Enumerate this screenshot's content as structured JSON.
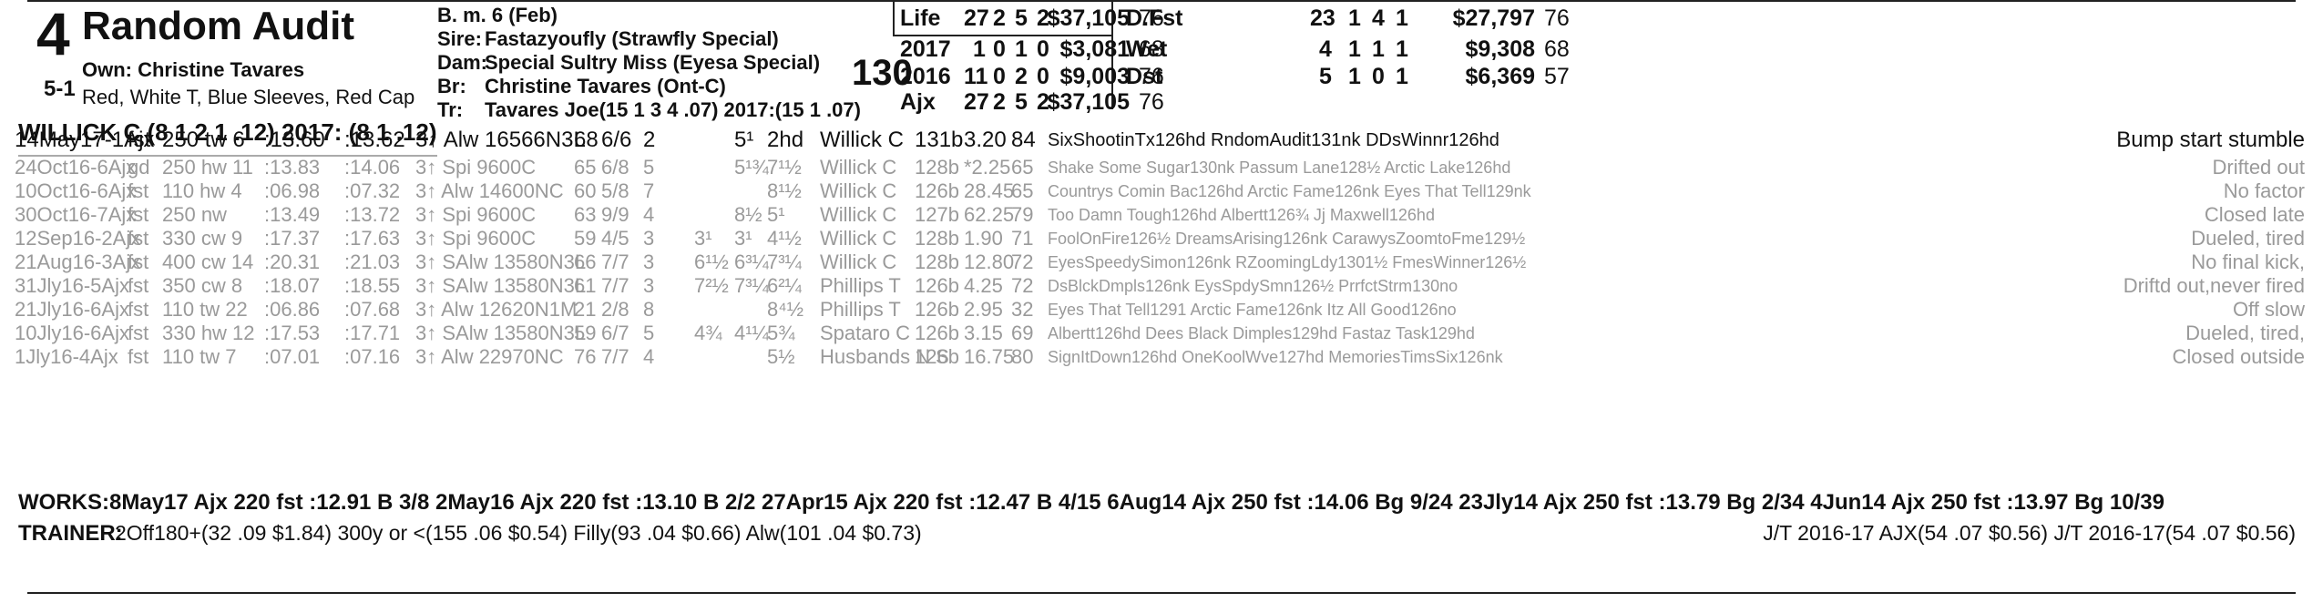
{
  "header": {
    "program_number": "4",
    "morning_line": "5-1",
    "horse_name": "Random Audit",
    "owner": "Own: Christine Tavares",
    "silks": "Red, White T, Blue Sleeves, Red Cap",
    "jockey_line": "WILLICK C (8 1 2 1 .12) 2017: (8 1 .12)",
    "breeding": {
      "sex_age": "B. m. 6 (Feb)",
      "sire_label": "Sire:",
      "sire": "Fastazyoufly (Strawfly Special)",
      "dam_label": "Dam:",
      "dam": "Special Sultry Miss (Eyesa Special)",
      "breeder_label": "Br:",
      "breeder": "Christine Tavares (Ont-C)",
      "trainer_label": "Tr:",
      "trainer": "Tavares Joe(15 1 3 4 .07)  2017:(15 1 .07)"
    },
    "weight": "130"
  },
  "stats_left": [
    {
      "label": "Life",
      "starts": "27",
      "w": "2",
      "p": "5",
      "s": "2",
      "earn": "$37,105",
      "spd": "76"
    },
    {
      "label": "2017",
      "starts": "1",
      "w": "0",
      "p": "1",
      "s": "0",
      "earn": "$3,081",
      "spd": "68"
    },
    {
      "label": "2016",
      "starts": "11",
      "w": "0",
      "p": "2",
      "s": "0",
      "earn": "$9,003",
      "spd": "76"
    },
    {
      "label": "Ajx",
      "starts": "27",
      "w": "2",
      "p": "5",
      "s": "2",
      "earn": "$37,105",
      "spd": "76"
    }
  ],
  "stats_right": [
    {
      "label": "D.Fst",
      "starts": "23",
      "w": "1",
      "p": "4",
      "s": "1",
      "earn": "$27,797",
      "spd": "76"
    },
    {
      "label": "Wet",
      "starts": "4",
      "w": "1",
      "p": "1",
      "s": "1",
      "earn": "$9,308",
      "spd": "68"
    },
    {
      "label": "Dst",
      "starts": "5",
      "w": "1",
      "p": "0",
      "s": "1",
      "earn": "$6,369",
      "spd": "57"
    }
  ],
  "past_performances": [
    {
      "date": "14May17-1Ajx",
      "cond": "fst",
      "dist": "250 tw 6",
      "frac": ":13.60",
      "final": ":13.62",
      "race": "3↑ Alw 16566N3L",
      "spd": "68",
      "pp": "6/6",
      "st": "2",
      "call1": "",
      "call2": "5¹",
      "fin": "2hd",
      "jockey": "Willick C",
      "wt": "131b",
      "odds": "3.20",
      "fig": "84",
      "top3": "SixShootinTx126hd RndomAudit131nk DDsWinnr126hd",
      "comment": "Bump start stumble",
      "active": true
    },
    {
      "date": "24Oct16-6Ajx",
      "cond": "gd",
      "dist": "250 hw 11",
      "frac": ":13.83",
      "final": ":14.06",
      "race": "3↑ Spi 9600C",
      "spd": "65",
      "pp": "6/8",
      "st": "5",
      "call1": "",
      "call2": "5¹¾",
      "fin": "7¹½",
      "jockey": "Willick C",
      "wt": "128b",
      "odds": "*2.25",
      "fig": "65",
      "top3": "Shake Some Sugar130nk Passum Lane128½ Arctic Lake126hd",
      "comment": "Drifted out",
      "active": false
    },
    {
      "date": "10Oct16-6Ajx",
      "cond": "fst",
      "dist": "110 hw 4",
      "frac": ":06.98",
      "final": ":07.32",
      "race": "3↑ Alw 14600NC",
      "spd": "60",
      "pp": "5/8",
      "st": "7",
      "call1": "",
      "call2": "",
      "fin": "8¹½",
      "jockey": "Willick C",
      "wt": "126b",
      "odds": "28.45",
      "fig": "65",
      "top3": "Countrys Comin Bac126hd Arctic Fame126nk Eyes That Tell129nk",
      "comment": "No factor",
      "active": false
    },
    {
      "date": "30Oct16-7Ajx",
      "cond": "fst",
      "dist": "250 nw",
      "frac": ":13.49",
      "final": ":13.72",
      "race": "3↑ Spi 9600C",
      "spd": "63",
      "pp": "9/9",
      "st": "4",
      "call1": "",
      "call2": "8½",
      "fin": "5¹",
      "jockey": "Willick C",
      "wt": "127b",
      "odds": "62.25",
      "fig": "79",
      "top3": "Too Damn Tough126hd Albertt126¾ Jj Maxwell126hd",
      "comment": "Closed late",
      "active": false
    },
    {
      "date": "12Sep16-2Ajx",
      "cond": "fst",
      "dist": "330 cw 9",
      "frac": ":17.37",
      "final": ":17.63",
      "race": "3↑ Spi 9600C",
      "spd": "59",
      "pp": "4/5",
      "st": "3",
      "call1": "3¹",
      "call2": "3¹",
      "fin": "4¹½",
      "jockey": "Willick C",
      "wt": "128b",
      "odds": "1.90",
      "fig": "71",
      "top3": "FoolOnFire126½ DreamsArising126nk CarawysZoomtoFme129½",
      "comment": "Dueled, tired",
      "active": false
    },
    {
      "date": "21Aug16-3Ajx",
      "cond": "fst",
      "dist": "400 cw 14",
      "frac": ":20.31",
      "final": ":21.03",
      "race": "3↑ SAlw 13580N3L",
      "spd": "66",
      "pp": "7/7",
      "st": "3",
      "call1": "6¹½",
      "call2": "6³¼",
      "fin": "7³¼",
      "jockey": "Willick C",
      "wt": "128b",
      "odds": "12.80",
      "fig": "72",
      "top3": "EyesSpeedySimon126nk RZoomingLdy1301½ FmesWinner126½",
      "comment": "No final kick,",
      "active": false
    },
    {
      "date": "31Jly16-5Ajx",
      "cond": "fst",
      "dist": "350 cw 8",
      "frac": ":18.07",
      "final": ":18.55",
      "race": "3↑ SAlw 13580N3L",
      "spd": "61",
      "pp": "7/7",
      "st": "3",
      "call1": "7²½",
      "call2": "7³¼",
      "fin": "6²¼",
      "jockey": "Phillips T",
      "wt": "126b",
      "odds": "4.25",
      "fig": "72",
      "top3": "DsBlckDmpls126nk EysSpdySmn126½ PrrfctStrm130no",
      "comment": "Driftd out,never fired",
      "active": false
    },
    {
      "date": "21Jly16-6Ajx",
      "cond": "fst",
      "dist": "110 tw 22",
      "frac": ":06.86",
      "final": ":07.68",
      "race": "3↑ Alw 12620N1M",
      "spd": "21",
      "pp": "2/8",
      "st": "8",
      "call1": "",
      "call2": "",
      "fin": "8⁴½",
      "jockey": "Phillips T",
      "wt": "126b",
      "odds": "2.95",
      "fig": "32",
      "top3": "Eyes That Tell1291 Arctic Fame126nk Itz All Good126no",
      "comment": "Off slow",
      "active": false
    },
    {
      "date": "10Jly16-6Ajx",
      "cond": "fst",
      "dist": "330 hw 12",
      "frac": ":17.53",
      "final": ":17.71",
      "race": "3↑ SAlw 13580N3L",
      "spd": "59",
      "pp": "6/7",
      "st": "5",
      "call1": "4¾",
      "call2": "4¹¼",
      "fin": "5¾",
      "jockey": "Spataro C",
      "wt": "126b",
      "odds": "3.15",
      "fig": "69",
      "top3": "Albertt126hd Dees Black Dimples129hd Fastaz Task129hd",
      "comment": "Dueled, tired,",
      "active": false
    },
    {
      "date": "1Jly16-4Ajx",
      "cond": "fst",
      "dist": "110 tw 7",
      "frac": ":07.01",
      "final": ":07.16",
      "race": "3↑ Alw 22970NC",
      "spd": "76",
      "pp": "7/7",
      "st": "4",
      "call1": "",
      "call2": "",
      "fin": "5½",
      "jockey": "Husbands N S",
      "wt": "126b",
      "odds": "16.75",
      "fig": "80",
      "top3": "SignItDown126hd OneKoolWve127hd MemoriesTimsSix126nk",
      "comment": "Closed outside",
      "active": false
    }
  ],
  "works": {
    "label": "WORKS:",
    "text": "8May17 Ajx 220 fst :12.91 B 3/8   2May16 Ajx 220 fst :13.10 B 2/2   27Apr15 Ajx 220 fst :12.47 B 4/15   6Aug14 Ajx 250 fst :14.06 Bg 9/24   23Jly14 Ajx 250 fst :13.79 Bg 2/34   4Jun14 Ajx 250 fst :13.97 Bg 10/39"
  },
  "trainer_stats": {
    "label": "TRAINER:",
    "text": "2Off180+(32 .09 $1.84) 300y or <(155 .06 $0.54) Filly(93 .04 $0.66) Alw(101 .04 $0.73)",
    "jt": "J/T 2016-17 AJX(54 .07 $0.56)  J/T 2016-17(54 .07 $0.56)"
  },
  "colors": {
    "text": "#111111",
    "dim": "#9a9a9a",
    "rule": "#222222"
  }
}
